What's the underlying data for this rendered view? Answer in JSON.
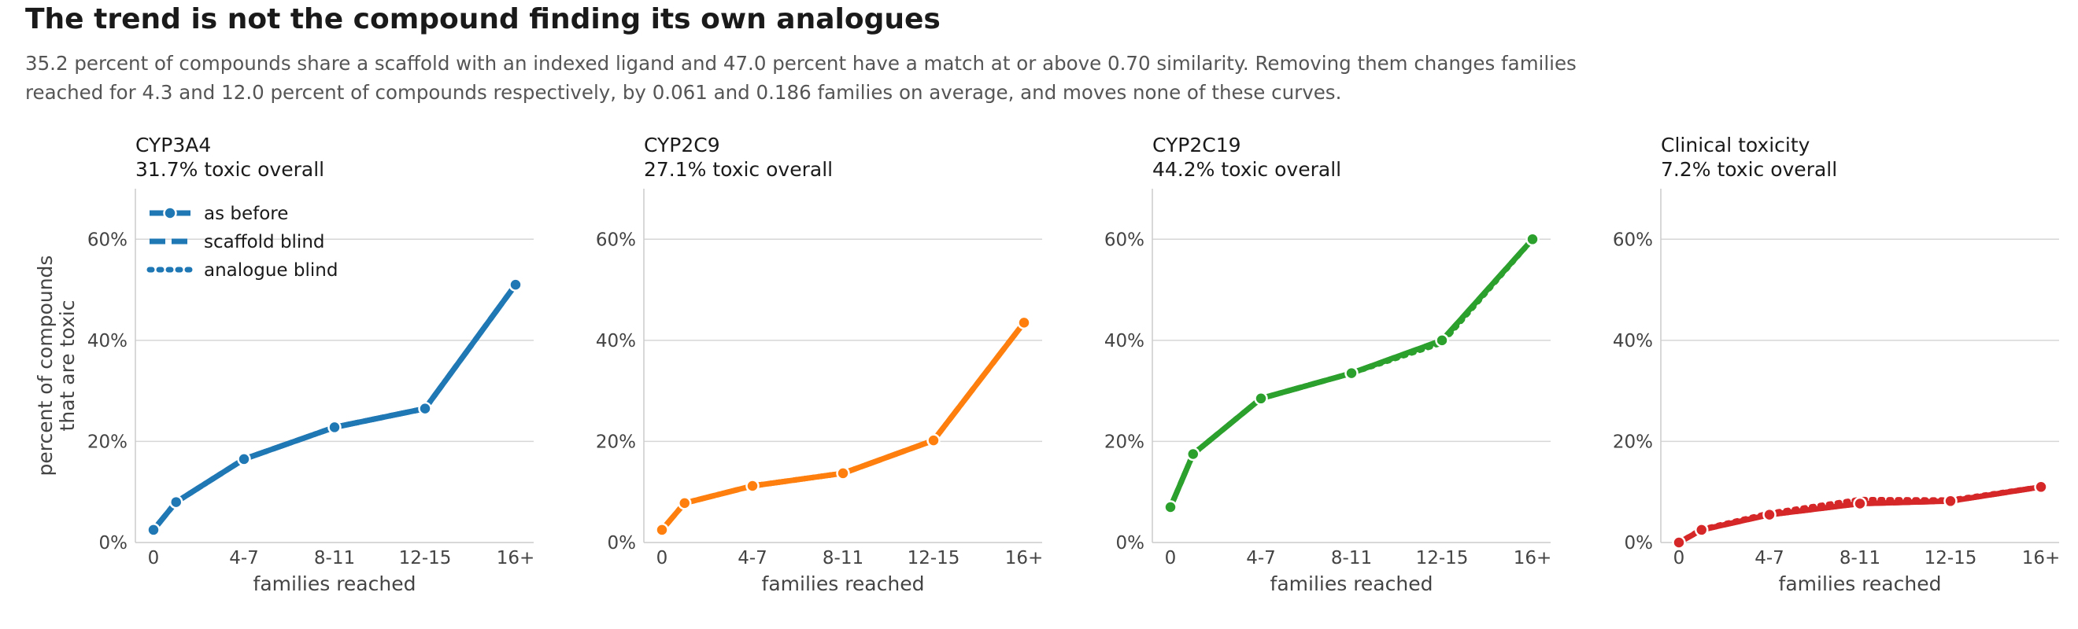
{
  "title": "The trend is not the compound finding its own analogues",
  "subtitle": "35.2 percent of compounds share a scaffold with an indexed ligand and 47.0 percent have a match at or above 0.70 similarity. Removing them changes families reached for 4.3 and 12.0 percent of compounds respectively, by 0.061 and 0.186 families on average, and moves none of these curves.",
  "legend": [
    "as before",
    "scaffold blind",
    "analogue blind"
  ],
  "chart_data": [
    {
      "type": "line",
      "title": "CYP3A4",
      "subtitle": "31.7% toxic overall",
      "color": "#1f77b4",
      "xlabel": "families reached",
      "ylabel": "percent of compounds that are toxic",
      "xticks": [
        "0",
        "4-7",
        "8-11",
        "12-15",
        "16+"
      ],
      "xtick_positions": [
        0,
        4,
        8,
        12,
        16
      ],
      "yticks": [
        "0%",
        "20%",
        "40%",
        "60%"
      ],
      "ylim": [
        0,
        70
      ],
      "xlim": [
        -0.8,
        16.8
      ],
      "grid": "y",
      "legend_position": "top-left",
      "series": [
        {
          "name": "as before",
          "style": "solid",
          "x": [
            0,
            1,
            4,
            8,
            12,
            16
          ],
          "y": [
            2.5,
            8.0,
            16.5,
            22.8,
            26.5,
            51.0
          ]
        },
        {
          "name": "scaffold blind",
          "style": "dashed",
          "x": [
            0,
            1,
            4,
            8,
            12,
            16
          ],
          "y": [
            2.5,
            8.0,
            16.5,
            22.8,
            26.5,
            51.0
          ]
        },
        {
          "name": "analogue blind",
          "style": "dotted",
          "x": [
            0,
            1,
            4,
            8,
            12,
            16
          ],
          "y": [
            2.5,
            8.0,
            16.5,
            22.8,
            26.5,
            51.0
          ]
        }
      ]
    },
    {
      "type": "line",
      "title": "CYP2C9",
      "subtitle": "27.1% toxic overall",
      "color": "#ff7f0e",
      "xlabel": "families reached",
      "ylabel": "",
      "xticks": [
        "0",
        "4-7",
        "8-11",
        "12-15",
        "16+"
      ],
      "xtick_positions": [
        0,
        4,
        8,
        12,
        16
      ],
      "yticks": [
        "0%",
        "20%",
        "40%",
        "60%"
      ],
      "ylim": [
        0,
        70
      ],
      "xlim": [
        -0.8,
        16.8
      ],
      "grid": "y",
      "series": [
        {
          "name": "as before",
          "style": "solid",
          "x": [
            0,
            1,
            4,
            8,
            12,
            16
          ],
          "y": [
            2.5,
            7.8,
            11.2,
            13.7,
            20.2,
            43.5
          ]
        },
        {
          "name": "scaffold blind",
          "style": "dashed",
          "x": [
            0,
            1,
            4,
            8,
            12,
            16
          ],
          "y": [
            2.5,
            7.8,
            11.2,
            13.7,
            20.2,
            43.5
          ]
        },
        {
          "name": "analogue blind",
          "style": "dotted",
          "x": [
            0,
            1,
            4,
            8,
            12,
            16
          ],
          "y": [
            2.5,
            7.8,
            11.2,
            13.7,
            20.2,
            43.5
          ]
        }
      ]
    },
    {
      "type": "line",
      "title": "CYP2C19",
      "subtitle": "44.2% toxic overall",
      "color": "#2ca02c",
      "xlabel": "families reached",
      "ylabel": "",
      "xticks": [
        "0",
        "4-7",
        "8-11",
        "12-15",
        "16+"
      ],
      "xtick_positions": [
        0,
        4,
        8,
        12,
        16
      ],
      "yticks": [
        "0%",
        "20%",
        "40%",
        "60%"
      ],
      "ylim": [
        0,
        70
      ],
      "xlim": [
        -0.8,
        16.8
      ],
      "grid": "y",
      "series": [
        {
          "name": "as before",
          "style": "solid",
          "x": [
            0,
            1,
            4,
            8,
            12,
            16
          ],
          "y": [
            7.0,
            17.5,
            28.5,
            33.5,
            40.0,
            60.0
          ]
        },
        {
          "name": "scaffold blind",
          "style": "dashed",
          "x": [
            0,
            1,
            4,
            8,
            12,
            16
          ],
          "y": [
            7.0,
            17.5,
            28.5,
            33.5,
            40.0,
            60.0
          ]
        },
        {
          "name": "analogue blind",
          "style": "dotted",
          "x": [
            0,
            1,
            4,
            8,
            12,
            16
          ],
          "y": [
            7.0,
            17.5,
            28.5,
            33.5,
            39.5,
            60.0
          ]
        }
      ]
    },
    {
      "type": "line",
      "title": "Clinical toxicity",
      "subtitle": "7.2% toxic overall",
      "color": "#d62728",
      "xlabel": "families reached",
      "ylabel": "",
      "xticks": [
        "0",
        "4-7",
        "8-11",
        "12-15",
        "16+"
      ],
      "xtick_positions": [
        0,
        4,
        8,
        12,
        16
      ],
      "yticks": [
        "0%",
        "20%",
        "40%",
        "60%"
      ],
      "ylim": [
        0,
        70
      ],
      "xlim": [
        -0.8,
        16.8
      ],
      "grid": "y",
      "series": [
        {
          "name": "as before",
          "style": "solid",
          "x": [
            0,
            1,
            4,
            8,
            12,
            16
          ],
          "y": [
            0.0,
            2.5,
            5.5,
            7.7,
            8.2,
            11.0
          ]
        },
        {
          "name": "scaffold blind",
          "style": "dashed",
          "x": [
            0,
            1,
            4,
            8,
            12,
            16
          ],
          "y": [
            0.0,
            2.5,
            5.5,
            7.7,
            8.2,
            11.0
          ]
        },
        {
          "name": "analogue blind",
          "style": "dotted",
          "x": [
            0,
            1,
            4,
            8,
            12,
            16
          ],
          "y": [
            0.0,
            2.6,
            5.8,
            8.5,
            8.4,
            11.0
          ]
        }
      ]
    }
  ]
}
